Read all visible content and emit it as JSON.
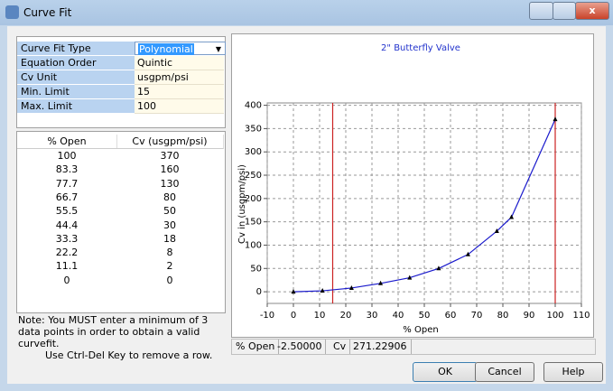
{
  "window": {
    "title": "Curve Fit"
  },
  "properties": [
    [
      "Curve Fit Type",
      "Polynomial"
    ],
    [
      "Equation Order",
      "Quintic"
    ],
    [
      "Cv Unit",
      "usgpm/psi"
    ],
    [
      "Min. Limit",
      15
    ],
    [
      "Max. Limit",
      100
    ]
  ],
  "table": {
    "columns": [
      "% Open",
      "Cv (usgpm/psi)"
    ],
    "rows": [
      [
        100,
        370
      ],
      [
        83.3,
        160
      ],
      [
        77.7,
        130
      ],
      [
        66.7,
        80
      ],
      [
        55.5,
        50
      ],
      [
        44.4,
        30
      ],
      [
        33.3,
        18
      ],
      [
        22.2,
        8
      ],
      [
        11.1,
        2
      ],
      [
        0,
        0
      ]
    ]
  },
  "note": [
    "Note: You MUST enter a minimum of 3 data points in order to obtain a valid curvefit.",
    "Use Ctrl-Del Key to remove a row."
  ],
  "chart": {
    "title": "2\" Butterfly Valve",
    "x_label": "% Open",
    "y_label": "Cv in (usgpm/psi)",
    "xlim": [
      -10,
      110
    ],
    "xticks": [
      -10,
      0,
      10,
      20,
      30,
      40,
      50,
      60,
      70,
      80,
      90,
      100,
      110
    ],
    "ylim": [
      -25,
      405
    ],
    "yticks": [
      0,
      50,
      100,
      150,
      200,
      250,
      300,
      350,
      400
    ],
    "grid": true,
    "line_color": "#1a1acc",
    "limit_color": "#cc2222",
    "point_color": "#000000"
  },
  "status": [
    "% Open",
    "-2.50000",
    "Cv",
    "271.22906"
  ],
  "buttons": [
    "OK",
    "Cancel",
    "Help"
  ]
}
